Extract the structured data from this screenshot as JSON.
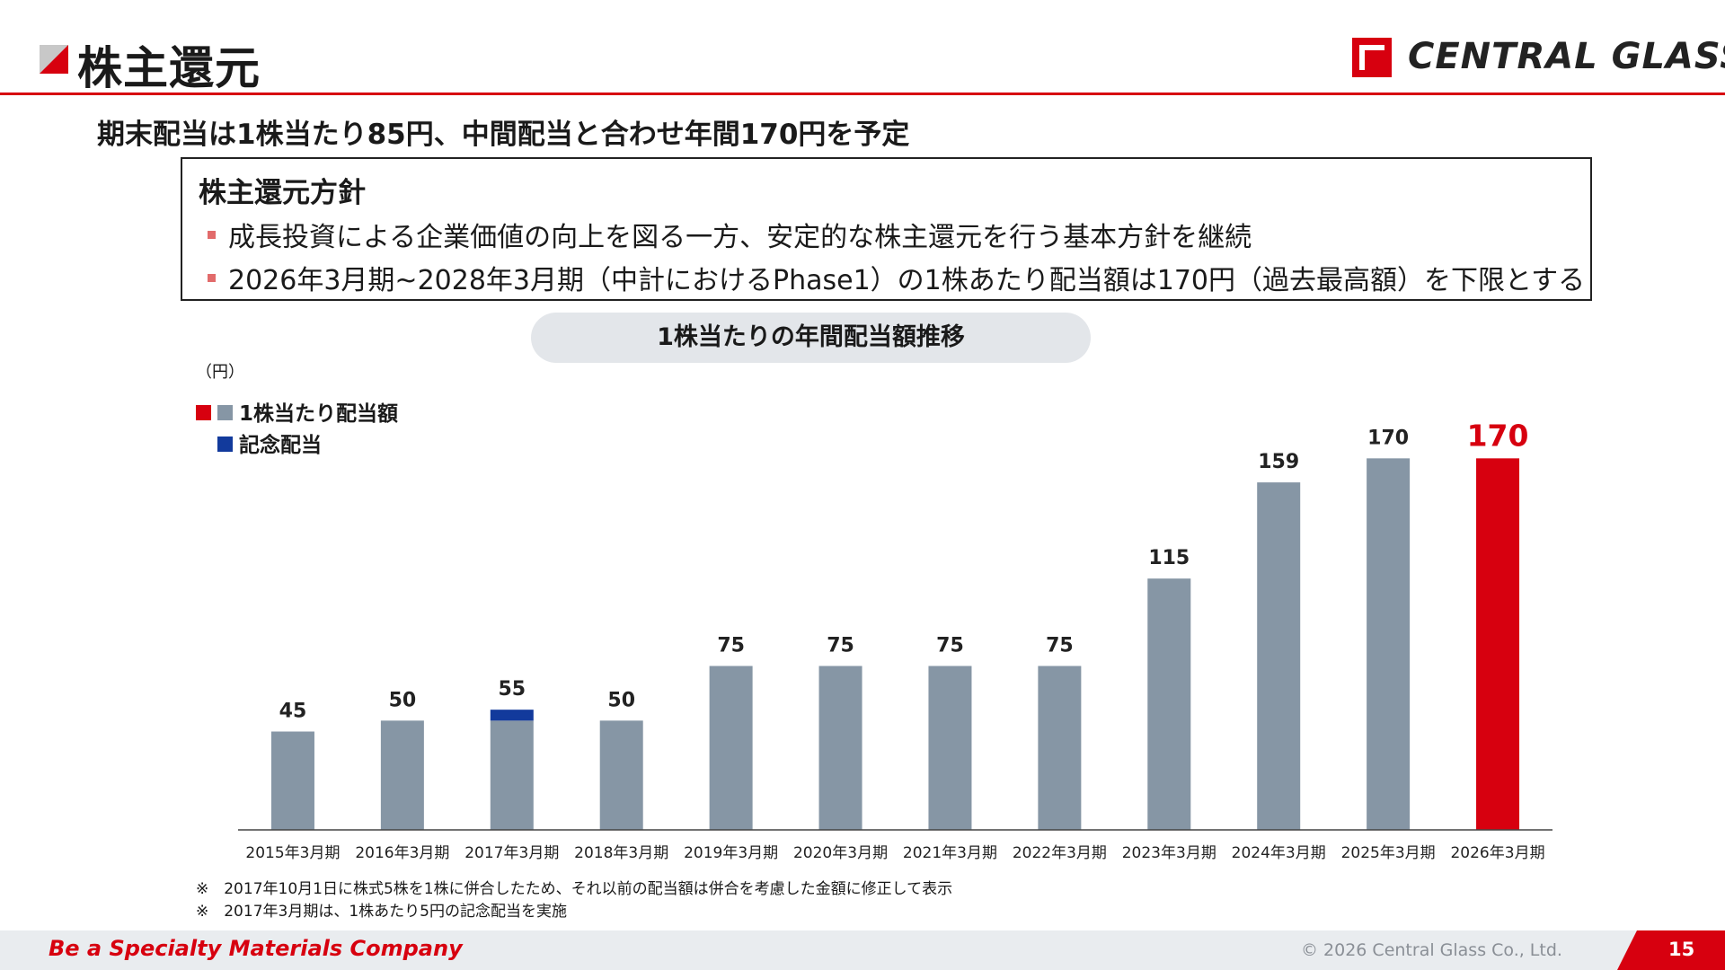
{
  "header": {
    "title": "株主還元",
    "logo_text": "CENTRAL GLASS",
    "accent_color": "#d7000f"
  },
  "subtitle": "期末配当は1株当たり85円、中間配当と合わせ年間170円を予定",
  "policy": {
    "heading": "株主還元方針",
    "items": [
      "成長投資による企業価値の向上を図る一方、安定的な株主還元を行う基本方針を継続",
      "2026年3月期~2028年3月期（中計におけるPhase1）の1株あたり配当額は170円（過去最高額）を下限とする"
    ]
  },
  "chart_title": "1株当たりの年間配当額推移",
  "chart_data": {
    "type": "bar",
    "unit_label": "（円）",
    "categories": [
      "2015年3月期",
      "2016年3月期",
      "2017年3月期",
      "2018年3月期",
      "2019年3月期",
      "2020年3月期",
      "2021年3月期",
      "2022年3月期",
      "2023年3月期",
      "2024年3月期",
      "2025年3月期",
      "2026年3月期"
    ],
    "series": [
      {
        "name": "1株当たり配当額",
        "values": [
          45,
          50,
          50,
          50,
          75,
          75,
          75,
          75,
          115,
          159,
          170,
          170
        ],
        "color": "#8696a5",
        "highlight_color": "#d7000f",
        "highlight_index": 11
      },
      {
        "name": "記念配当",
        "values": [
          0,
          0,
          5,
          0,
          0,
          0,
          0,
          0,
          0,
          0,
          0,
          0
        ],
        "color": "#123a9c"
      }
    ],
    "totals": [
      45,
      50,
      55,
      50,
      75,
      75,
      75,
      75,
      115,
      159,
      170,
      170
    ],
    "total_labels": [
      "45",
      "50",
      "55",
      "50",
      "75",
      "75",
      "75",
      "75",
      "115",
      "159",
      "170",
      "170"
    ],
    "ylim": [
      0,
      180
    ],
    "grid": false,
    "legend": "top-left"
  },
  "notes": [
    "※　2017年10月1日に株式5株を1株に併合したため、それ以前の配当額は併合を考慮した金額に修正して表示",
    "※　2017年3月期は、1株あたり5円の記念配当を実施"
  ],
  "footer": {
    "tagline": "Be a Specialty Materials Company",
    "copyright": "© 2026 Central Glass Co., Ltd.",
    "page_number": "15"
  }
}
